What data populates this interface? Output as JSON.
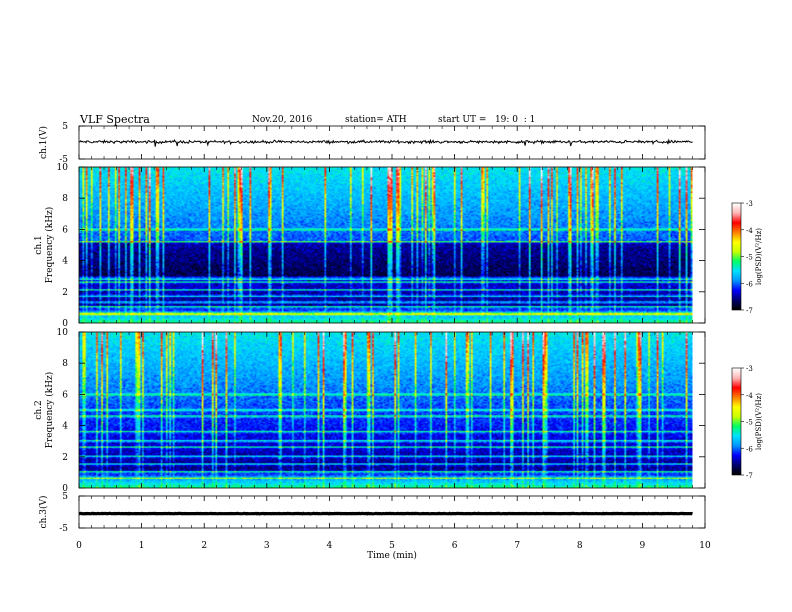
{
  "header": {
    "title": "VLF Spectra",
    "date": "Nov.20, 2016",
    "station": "station= ATH",
    "start": "start UT =   19: 0  : 1"
  },
  "chart_data": [
    {
      "type": "line",
      "id": "ch1-waveform",
      "ylabel": "ch.1(V)",
      "ylim": [
        -5,
        5
      ],
      "yticks": [
        "5",
        "-5"
      ],
      "description_values": {
        "mean_level_V": 0.2,
        "noise_amplitude_V": 0.6
      },
      "xlim": [
        0,
        10
      ],
      "data_end_min": 9.8
    },
    {
      "type": "heatmap",
      "id": "ch1-spectrogram",
      "ylabel": "ch.1\nFrequency (kHz)",
      "ylim": [
        0,
        10
      ],
      "yticks": [
        "0",
        "2",
        "4",
        "6",
        "8",
        "10"
      ],
      "xlim": [
        0,
        10
      ],
      "data_end_min": 9.8,
      "colorbar": {
        "label": "log(PSD)(V²/Hz)",
        "range": [
          -7,
          -3
        ],
        "ticks": [
          "-3",
          "-4",
          "-5",
          "-6",
          "-7"
        ]
      },
      "strong_lines_khz": [
        0.5,
        0.6,
        1.0,
        1.3,
        1.7,
        2.1,
        2.6,
        2.8,
        5.2,
        6.0
      ]
    },
    {
      "type": "heatmap",
      "id": "ch2-spectrogram",
      "ylabel": "ch.2\nFrequency (kHz)",
      "ylim": [
        0,
        10
      ],
      "yticks": [
        "0",
        "2",
        "4",
        "6",
        "8",
        "10"
      ],
      "xlim": [
        0,
        10
      ],
      "data_end_min": 9.8,
      "colorbar": {
        "label": "log(PSD)(V²/Hz)",
        "range": [
          -7,
          -3
        ],
        "ticks": [
          "-3",
          "-4",
          "-5",
          "-6",
          "-7"
        ]
      },
      "strong_lines_khz": [
        0.6,
        1.0,
        1.5,
        2.0,
        2.6,
        3.0,
        3.6,
        4.6,
        5.0,
        6.0
      ]
    },
    {
      "type": "line",
      "id": "ch3-waveform",
      "ylabel": "ch.3(V)",
      "ylim": [
        -5,
        5
      ],
      "yticks": [
        "5",
        "-5"
      ],
      "description_values": {
        "mean_level_V": -0.5,
        "noise_amplitude_V": 0.1
      },
      "xlim": [
        0,
        10
      ],
      "data_end_min": 9.8
    }
  ],
  "xaxis": {
    "label": "Time (min)",
    "ticks": [
      "0",
      "1",
      "2",
      "3",
      "4",
      "5",
      "6",
      "7",
      "8",
      "9",
      "10"
    ]
  },
  "colors": {
    "colormap": [
      "#000000",
      "#00006e",
      "#0000ff",
      "#0096ff",
      "#00e1ff",
      "#00ff64",
      "#c8ff00",
      "#ffff00",
      "#ff8000",
      "#ff0000",
      "#ffb4b4",
      "#ffffff"
    ]
  }
}
